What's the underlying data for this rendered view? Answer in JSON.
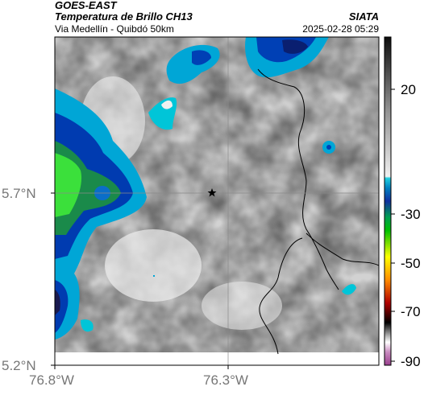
{
  "header": {
    "satellite": "GOES-EAST",
    "product": "Temperatura de Brillo CH13",
    "region": "Via Medellín - Quibdó 50km",
    "organization": "SIATA",
    "timestamp": "2025-02-28 05:29"
  },
  "axes": {
    "lat_labels": [
      "5.7°N",
      "5.2°N"
    ],
    "lon_labels": [
      "76.8°W",
      "76.3°W"
    ]
  },
  "colorbar": {
    "tick_labels": [
      "20",
      "-30",
      "-50",
      "-70",
      "-90"
    ],
    "range": [
      -95,
      40
    ]
  },
  "marker": {
    "icon": "star-icon"
  }
}
